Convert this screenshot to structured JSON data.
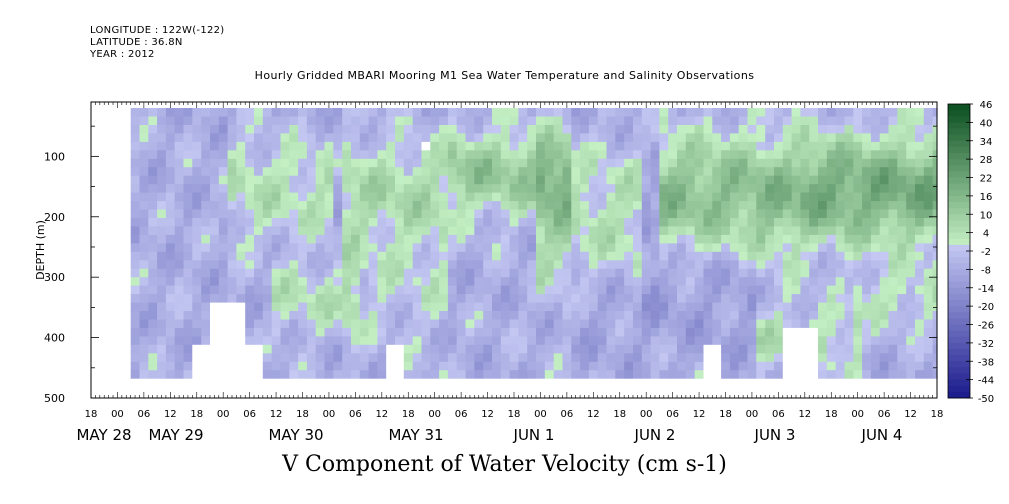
{
  "header": {
    "longitude": "LONGITUDE : 122W(-122)",
    "latitude": "LATITUDE : 36.8N",
    "year": "YEAR : 2012"
  },
  "title": "Hourly Gridded MBARI Mooring M1 Sea Water Temperature and Salinity Observations",
  "footer_label": "V Component of Water Velocity (cm s-1)",
  "colors": {
    "negative_low": "#1a1a8c",
    "negative_high": "#c4c8f2",
    "positive_low": "#c4f0c4",
    "positive_high": "#0a4d1f",
    "missing": "#ffffff"
  },
  "chart_data": {
    "type": "heatmap",
    "ylabel": "DEPTH (m)",
    "ylim": [
      500,
      10
    ],
    "y_ticks": [
      100,
      200,
      300,
      400,
      500
    ],
    "x_hour_ticks": [
      "18",
      "00",
      "06",
      "12",
      "18",
      "00",
      "06",
      "12",
      "18",
      "00",
      "06",
      "12",
      "18",
      "00",
      "06",
      "12",
      "18",
      "00",
      "06",
      "12",
      "18",
      "00",
      "06",
      "12",
      "18",
      "00",
      "06",
      "12",
      "18",
      "00",
      "06",
      "12",
      "18"
    ],
    "x_date_labels": [
      "MAY 28",
      "MAY 29",
      "MAY 30",
      "MAY 31",
      "JUN  1",
      "JUN  2",
      "JUN  3",
      "JUN  4"
    ],
    "x_range_hours": [
      "2012-05-27 18:00",
      "2012-06-04 18:00"
    ],
    "data_start": "2012-05-28 03:00",
    "colorbar": {
      "levels": [
        46,
        40,
        34,
        28,
        22,
        16,
        10,
        4,
        -2,
        -8,
        -14,
        -20,
        -26,
        -32,
        -38,
        -44,
        -50
      ],
      "min": -50,
      "max": 46,
      "step": 2
    },
    "value_summary": "Southward (blue, negative) flow dominates mid-depths late May 30–June 1; northward (green, positive) flow dominates upper water column June 2–4",
    "grid": false
  }
}
